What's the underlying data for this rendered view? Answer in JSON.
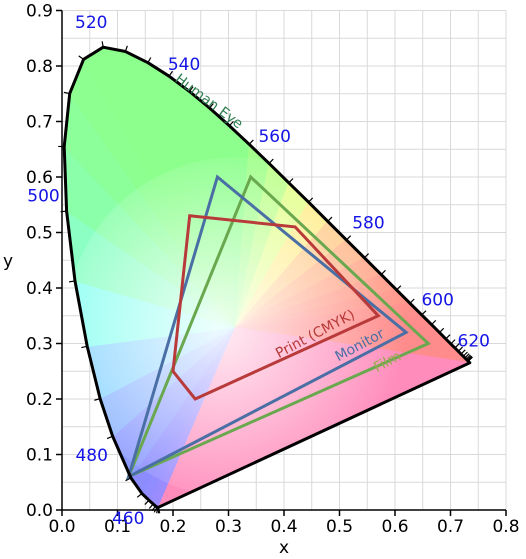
{
  "chart_data": {
    "type": "line",
    "xlabel": "x",
    "ylabel": "y",
    "xlim": [
      0.0,
      0.8
    ],
    "ylim": [
      0.0,
      0.9
    ],
    "x_ticks": [
      "0.0",
      "0.1",
      "0.2",
      "0.3",
      "0.4",
      "0.5",
      "0.6",
      "0.7",
      "0.8"
    ],
    "y_ticks": [
      "0.0",
      "0.1",
      "0.2",
      "0.3",
      "0.4",
      "0.5",
      "0.6",
      "0.7",
      "0.8",
      "0.9"
    ],
    "grid": true,
    "spectral_locus": [
      [
        0.1741,
        0.005
      ],
      [
        0.1738,
        0.0049
      ],
      [
        0.1736,
        0.0049
      ],
      [
        0.173,
        0.0048
      ],
      [
        0.1726,
        0.0048
      ],
      [
        0.1714,
        0.0051
      ],
      [
        0.1689,
        0.0069
      ],
      [
        0.1644,
        0.0109
      ],
      [
        0.1566,
        0.0177
      ],
      [
        0.144,
        0.0297
      ],
      [
        0.1241,
        0.0578
      ],
      [
        0.0913,
        0.1327
      ],
      [
        0.0687,
        0.2007
      ],
      [
        0.0454,
        0.295
      ],
      [
        0.0235,
        0.4127
      ],
      [
        0.0082,
        0.5384
      ],
      [
        0.0039,
        0.6548
      ],
      [
        0.0139,
        0.7502
      ],
      [
        0.0389,
        0.812
      ],
      [
        0.0743,
        0.8338
      ],
      [
        0.1142,
        0.8262
      ],
      [
        0.1547,
        0.8059
      ],
      [
        0.1929,
        0.7816
      ],
      [
        0.2296,
        0.7543
      ],
      [
        0.2658,
        0.7243
      ],
      [
        0.3016,
        0.6923
      ],
      [
        0.3373,
        0.6589
      ],
      [
        0.3731,
        0.6245
      ],
      [
        0.4087,
        0.5896
      ],
      [
        0.4441,
        0.5547
      ],
      [
        0.4788,
        0.5202
      ],
      [
        0.5125,
        0.4866
      ],
      [
        0.5448,
        0.4544
      ],
      [
        0.5752,
        0.4242
      ],
      [
        0.6029,
        0.3965
      ],
      [
        0.627,
        0.3725
      ],
      [
        0.6482,
        0.3514
      ],
      [
        0.6658,
        0.334
      ],
      [
        0.6801,
        0.3197
      ],
      [
        0.6915,
        0.3083
      ],
      [
        0.7006,
        0.2993
      ],
      [
        0.7079,
        0.292
      ],
      [
        0.714,
        0.2859
      ],
      [
        0.719,
        0.2809
      ],
      [
        0.723,
        0.277
      ],
      [
        0.726,
        0.274
      ],
      [
        0.7283,
        0.2717
      ],
      [
        0.73,
        0.27
      ],
      [
        0.7311,
        0.2689
      ],
      [
        0.732,
        0.268
      ],
      [
        0.7347,
        0.2653
      ]
    ],
    "wavelength_labels": [
      {
        "text": "460",
        "x": 0.144,
        "y": 0.0297
      },
      {
        "text": "480",
        "x": 0.0913,
        "y": 0.1327
      },
      {
        "text": "500",
        "x": 0.0082,
        "y": 0.5384
      },
      {
        "text": "520",
        "x": 0.0743,
        "y": 0.8338
      },
      {
        "text": "540",
        "x": 0.2296,
        "y": 0.7543
      },
      {
        "text": "560",
        "x": 0.3731,
        "y": 0.6245
      },
      {
        "text": "580",
        "x": 0.5125,
        "y": 0.4866
      },
      {
        "text": "600",
        "x": 0.627,
        "y": 0.3725
      },
      {
        "text": "620",
        "x": 0.6915,
        "y": 0.3083
      }
    ],
    "series": [
      {
        "name": "Human Eye",
        "color": "#000000",
        "label_color": "#2e7d4f"
      },
      {
        "name": "Film",
        "color": "#6aa84f",
        "label_color": "#9aa84f",
        "points": [
          [
            0.12,
            0.06
          ],
          [
            0.34,
            0.6
          ],
          [
            0.66,
            0.3
          ]
        ]
      },
      {
        "name": "Monitor",
        "color": "#4a6fa5",
        "label_color": "#4a6fa5",
        "points": [
          [
            0.12,
            0.06
          ],
          [
            0.28,
            0.6
          ],
          [
            0.62,
            0.32
          ]
        ]
      },
      {
        "name": "Print (CMYK)",
        "color": "#b83a3a",
        "label_color": "#b83a3a",
        "points": [
          [
            0.23,
            0.53
          ],
          [
            0.42,
            0.51
          ],
          [
            0.57,
            0.35
          ],
          [
            0.24,
            0.2
          ],
          [
            0.2,
            0.25
          ]
        ]
      }
    ]
  }
}
